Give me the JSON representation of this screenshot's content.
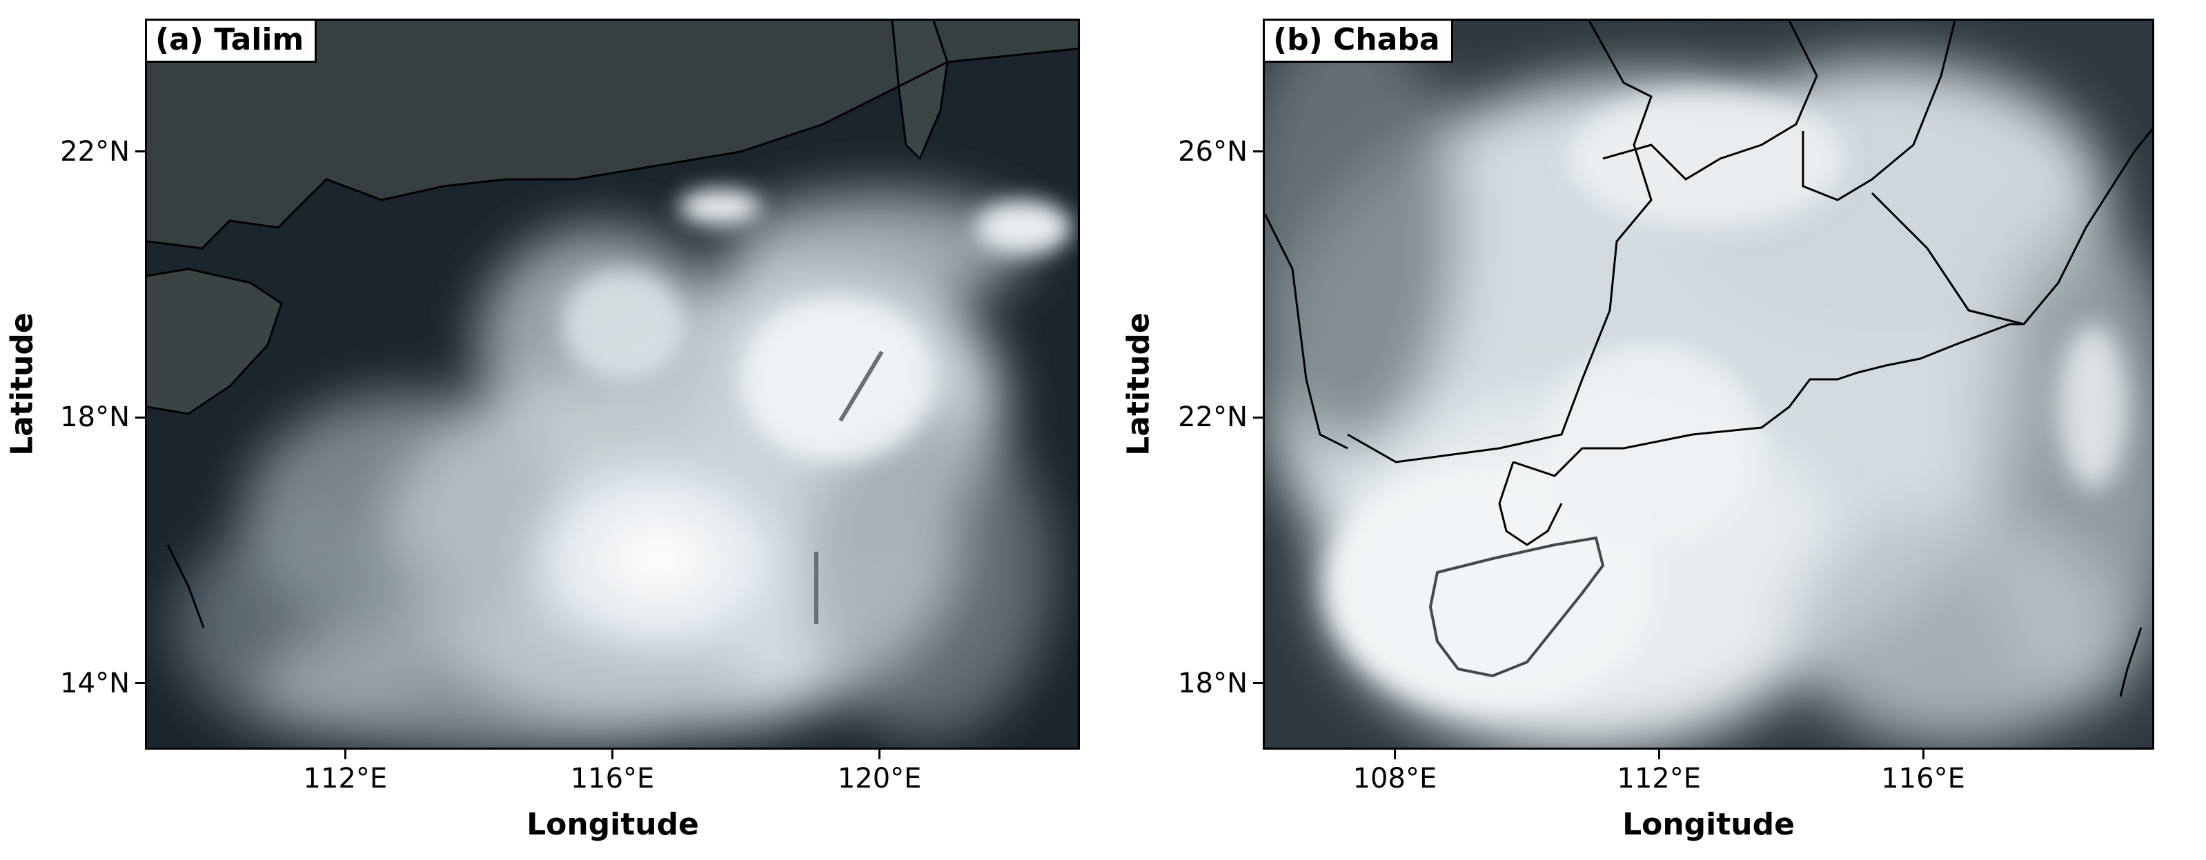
{
  "panels": [
    {
      "label": "(a) Talim",
      "x_ticks": [
        "112°E",
        "116°E",
        "120°E"
      ],
      "y_ticks": [
        "22°N",
        "18°N",
        "14°N"
      ],
      "xlabel": "Longitude",
      "ylabel": "Latitude",
      "lon_range": [
        109,
        123
      ],
      "lat_range": [
        13,
        24
      ],
      "tick_lons": [
        112,
        116,
        120
      ],
      "tick_lats": [
        22,
        18,
        14
      ],
      "colors": {
        "sea": "#1c2730",
        "land": "#3a4446",
        "cloud": "#e9eef2",
        "border": "#000000"
      }
    },
    {
      "label": "(b) Chaba",
      "x_ticks": [
        "108°E",
        "112°E",
        "116°E"
      ],
      "y_ticks": [
        "26°N",
        "22°N",
        "18°N"
      ],
      "xlabel": "Longitude",
      "ylabel": "Latitude",
      "lon_range": [
        106,
        119.5
      ],
      "lat_range": [
        17,
        28
      ],
      "tick_lons": [
        108,
        112,
        116
      ],
      "tick_lats": [
        26,
        22,
        18
      ],
      "colors": {
        "sea": "#2a353d",
        "land": "#3d4648",
        "cloud": "#dfe5ea",
        "border": "#000000"
      }
    }
  ]
}
